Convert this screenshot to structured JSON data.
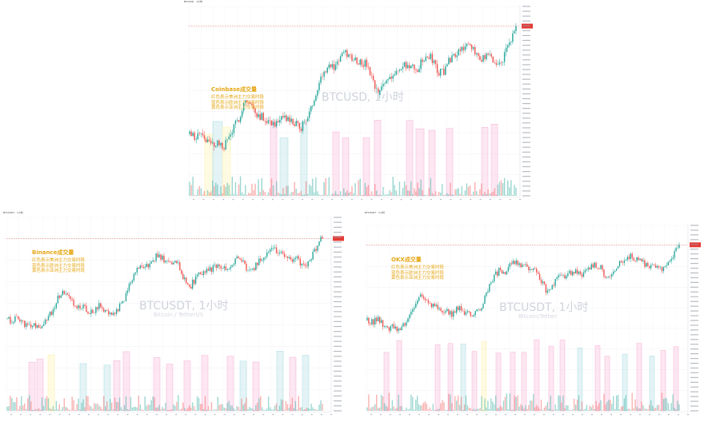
{
  "chart_data": [
    {
      "type": "candlestick",
      "symbol": "BTCUSD",
      "timeframe": "1小时",
      "exchange_title": "Coinbase成交量",
      "watermark": "BTCUSD, 1小时",
      "watermark_sub": "",
      "overlay_lines": [
        "红色表示美洲主力交易时段",
        "蓝色表示欧洲主力交易时段",
        "黄色表示亚洲主力交易时段"
      ],
      "session_colors": {
        "america": "#f8bbd9",
        "europe": "#b2dfe6",
        "asia": "#fff3b0"
      },
      "up_color": "#26a69a",
      "down_color": "#ef5350",
      "price_line_color": "#e53935"
    },
    {
      "type": "candlestick",
      "symbol": "BTCUSDT",
      "timeframe": "1小时",
      "exchange_title": "Binance成交量",
      "watermark": "BTCUSDT, 1小时",
      "watermark_sub": "Bitcoin / TetherUS",
      "overlay_lines": [
        "红色表示美洲主力交易时段",
        "蓝色表示欧洲主力交易时段",
        "黄色表示亚洲主力交易时段"
      ],
      "session_colors": {
        "america": "#f8bbd9",
        "europe": "#b2dfe6",
        "asia": "#fff3b0"
      },
      "up_color": "#26a69a",
      "down_color": "#ef5350",
      "price_line_color": "#e53935"
    },
    {
      "type": "candlestick",
      "symbol": "BTCUSDT",
      "timeframe": "1小时",
      "exchange_title": "OKX成交量",
      "watermark": "BTCUSDT, 1小时",
      "watermark_sub": "Bitcoin/Tether",
      "overlay_lines": [
        "红色表示美洲主力交易时段",
        "蓝色表示欧洲主力交易时段",
        "黄色表示亚洲主力交易时段"
      ],
      "session_colors": {
        "america": "#f8bbd9",
        "europe": "#b2dfe6",
        "asia": "#fff3b0"
      },
      "up_color": "#26a69a",
      "down_color": "#ef5350",
      "price_line_color": "#e53935"
    }
  ]
}
